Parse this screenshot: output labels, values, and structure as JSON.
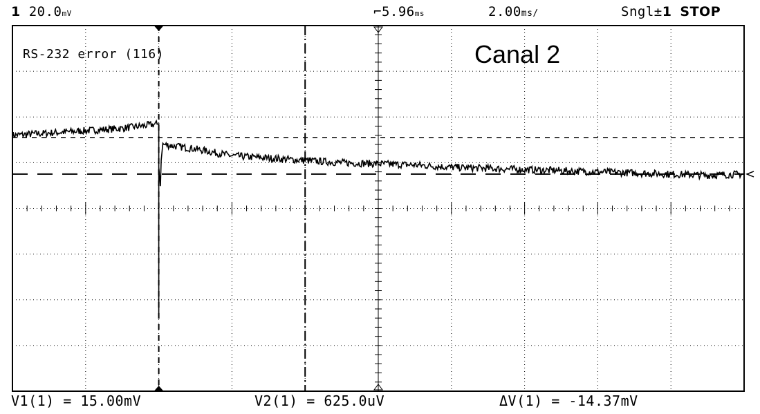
{
  "header": {
    "channel_number": "1",
    "volts_per_div": "20.0",
    "volts_unit": "mV",
    "trigger_delay": "5.96",
    "delay_unit": "ms",
    "time_per_div": "2.00",
    "time_unit": "ms/",
    "trigger_mode": "Sngl",
    "trigger_channel": "1",
    "run_state": "STOP"
  },
  "annotation": {
    "message": "RS-232 error (116)",
    "channel_label": "Canal 2"
  },
  "measurements": {
    "v1": "V1(1) = 15.00mV",
    "v2": "V2(1) = 625.0uV",
    "delta": "ΔV(1) = -14.37mV"
  },
  "colors": {
    "background": "#ffffff",
    "trace": "#000000",
    "grid": "#000000"
  },
  "chart_data": {
    "type": "line",
    "title": "",
    "xlabel": "",
    "ylabel": "",
    "x_divisions": 10,
    "y_divisions": 8,
    "time_per_div_ms": 2.0,
    "volts_per_div_mV": 20.0,
    "xlim_ms": [
      0,
      20
    ],
    "ylim_mV": [
      -80,
      80
    ],
    "grid": true,
    "series": [
      {
        "x": [
          0,
          1,
          2,
          3,
          4,
          4.0,
          4.05,
          4.1,
          5,
          6,
          7,
          8,
          9,
          10,
          11,
          12,
          13,
          14,
          15,
          16,
          17,
          18,
          19,
          20
        ],
        "y": [
          32,
          33,
          34,
          35,
          37,
          -47,
          18,
          28,
          26,
          23,
          22,
          21,
          20,
          19.5,
          19,
          18,
          17.5,
          17,
          16.5,
          16,
          15.5,
          15,
          14.5,
          15
        ]
      }
    ],
    "cursors_mV": {
      "v1": 15.0,
      "v2": 0.625
    },
    "time_markers_ms": [
      4,
      8,
      10
    ]
  }
}
